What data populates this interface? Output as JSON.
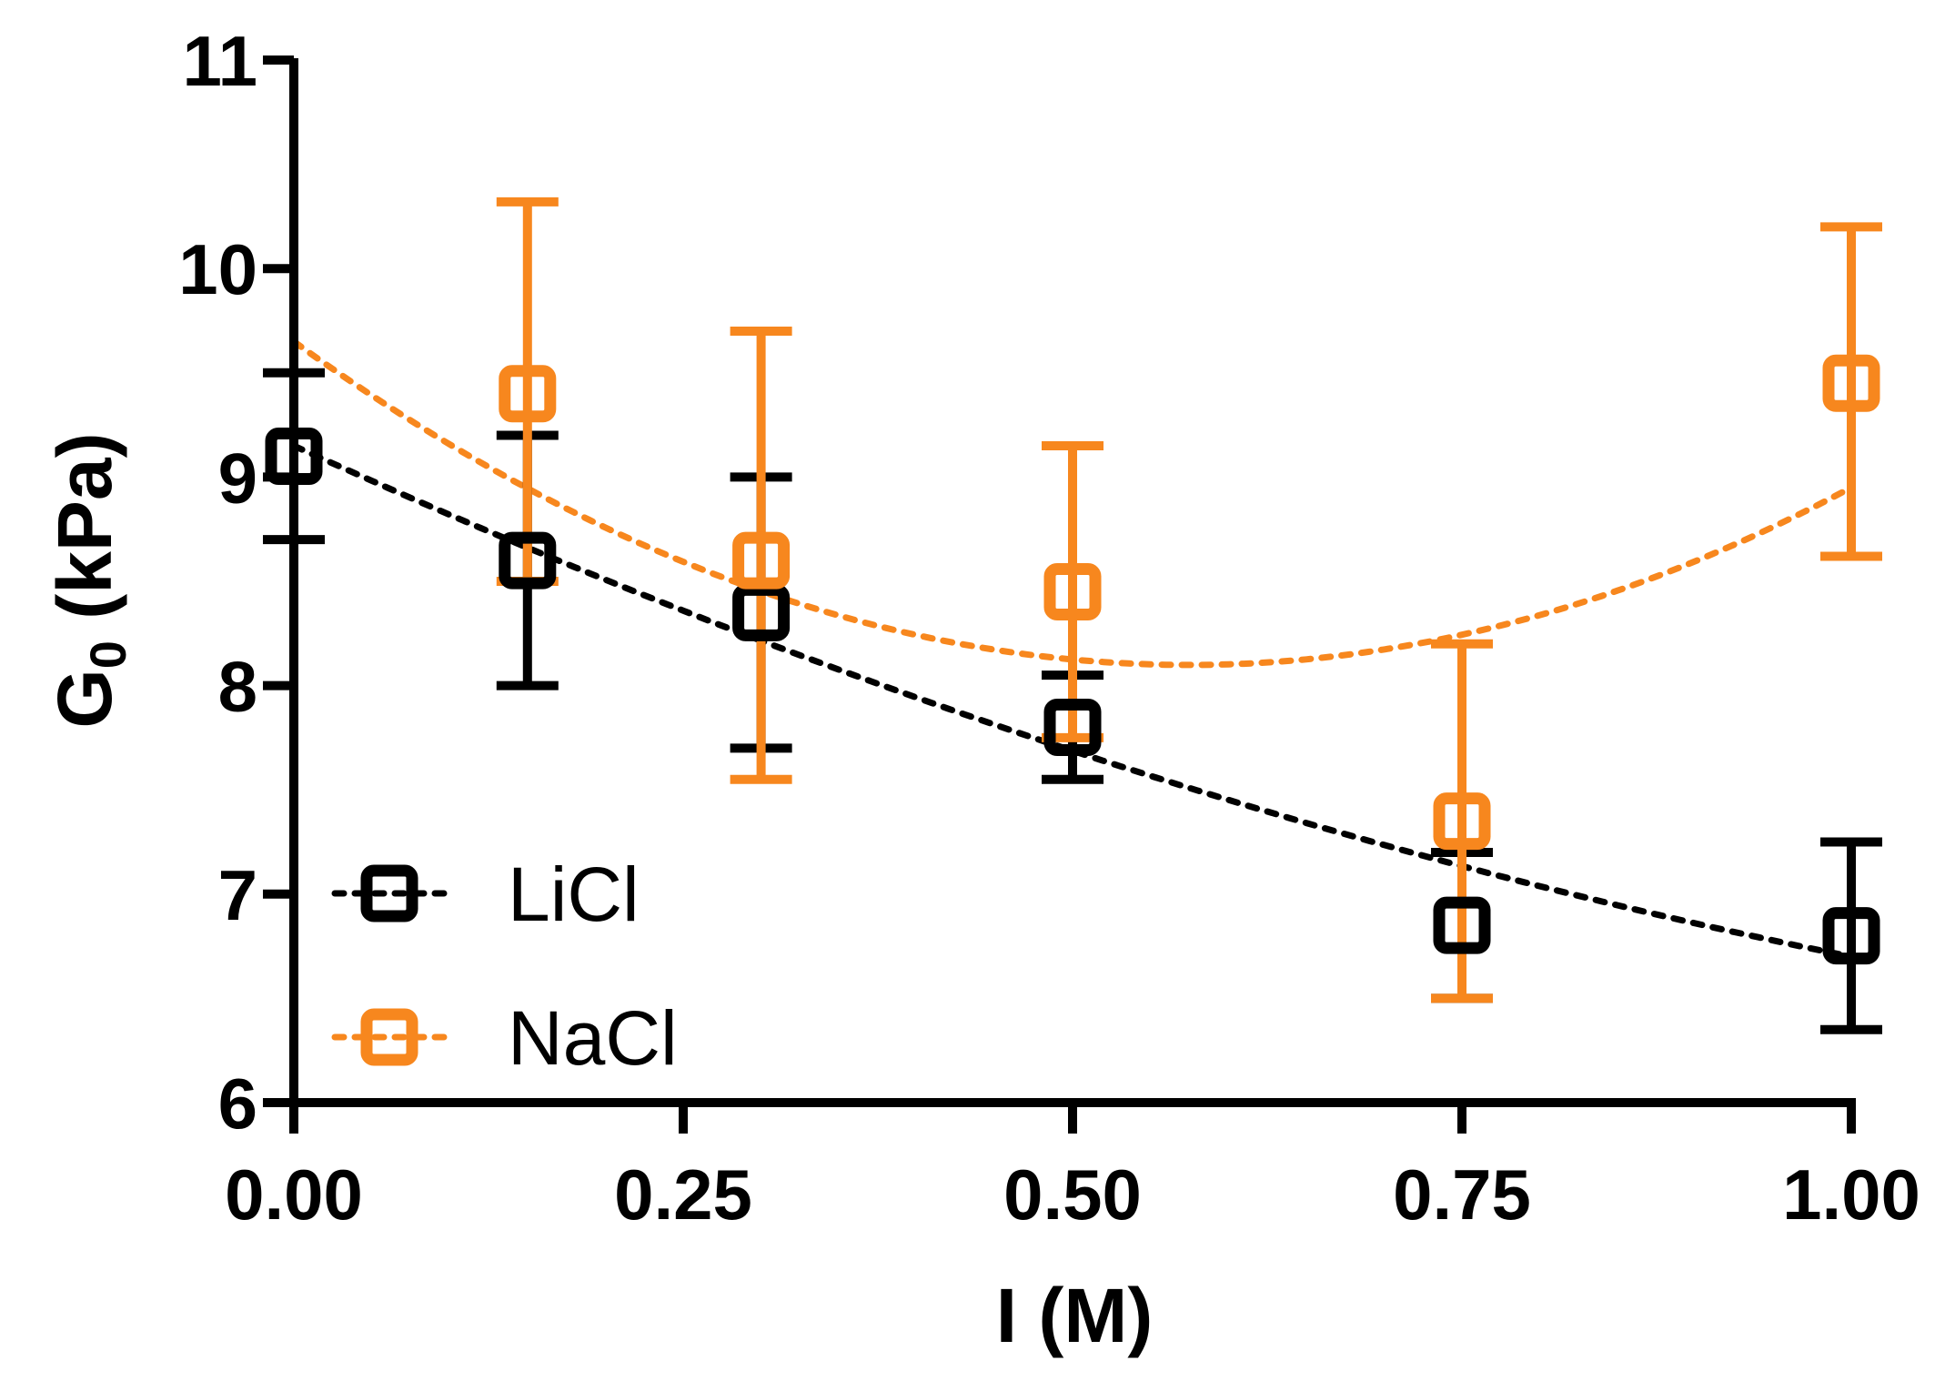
{
  "chart_data": {
    "type": "scatter",
    "title": "",
    "xlabel": "I (M)",
    "ylabel_main": "G",
    "ylabel_sub": "0",
    "ylabel_unit": "(kPa)",
    "xlim": [
      0,
      1.0
    ],
    "ylim": [
      6,
      11
    ],
    "xticks": [
      0,
      0.25,
      0.5,
      0.75,
      1.0
    ],
    "xtick_labels": [
      "0.00",
      "0.25",
      "0.50",
      "0.75",
      "1.00"
    ],
    "yticks": [
      6,
      7,
      8,
      9,
      10,
      11
    ],
    "ytick_labels": [
      "6",
      "7",
      "8",
      "9",
      "10",
      "11"
    ],
    "grid": false,
    "legend_position": "bottom-left",
    "series": [
      {
        "name": "LiCl",
        "color": "#000000",
        "x": [
          0,
          0.15,
          0.3,
          0.5,
          0.75,
          1.0
        ],
        "y": [
          9.1,
          8.6,
          8.35,
          7.8,
          6.85,
          6.8
        ],
        "err_low": [
          8.7,
          8.0,
          7.7,
          7.55,
          6.5,
          6.35
        ],
        "err_high": [
          9.5,
          9.2,
          9.0,
          8.05,
          7.2,
          7.25
        ],
        "fit": {
          "type": "quadratic",
          "coefficients": [
            9.15,
            -3.4,
            0.95
          ]
        }
      },
      {
        "name": "NaCl",
        "color": "#F7871E",
        "x": [
          0.15,
          0.3,
          0.5,
          0.75,
          1.0
        ],
        "y": [
          9.4,
          8.6,
          8.45,
          7.35,
          9.45
        ],
        "err_low": [
          8.5,
          7.55,
          7.75,
          6.5,
          8.62
        ],
        "err_high": [
          10.32,
          9.7,
          9.15,
          8.2,
          10.2
        ],
        "fit": {
          "type": "quadratic",
          "coefficients": [
            9.65,
            -5.4,
            4.7
          ]
        }
      }
    ]
  }
}
